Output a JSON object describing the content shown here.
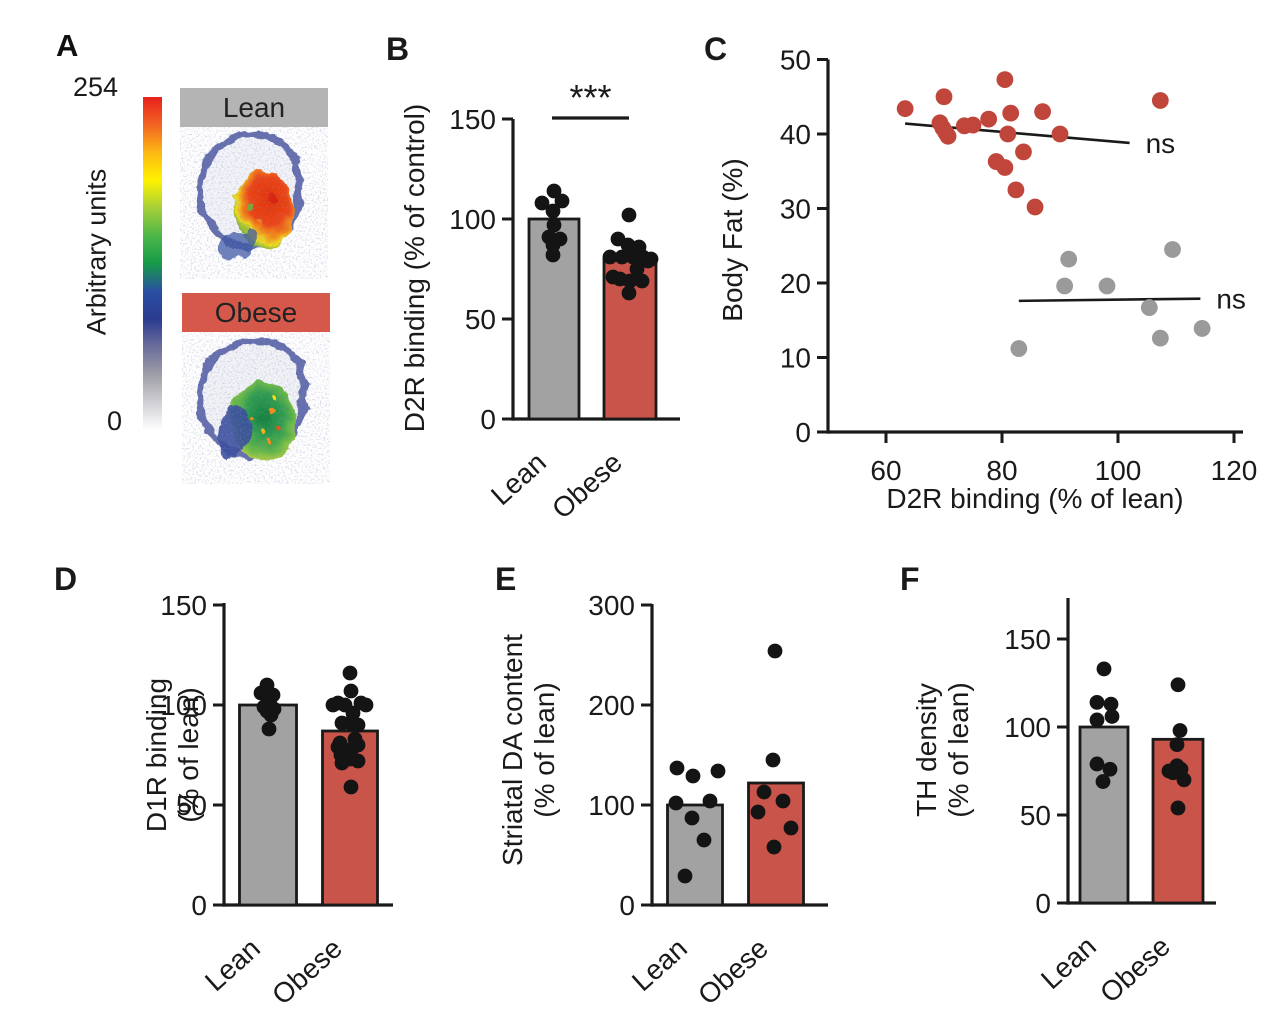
{
  "panel_a": {
    "label": "A",
    "colorbar": {
      "top_label": "254",
      "bottom_label": "0",
      "axis_label": "Arbitrary units",
      "gradient": [
        "#e8211d",
        "#f26322",
        "#fcb813",
        "#fff200",
        "#a6cf39",
        "#4cb749",
        "#169a49",
        "#2a4fa2",
        "#2b3b8f",
        "#6b6d9c",
        "#9e9ea6",
        "#cfcfd4",
        "#ffffff"
      ]
    },
    "images": [
      {
        "title": "Lean",
        "title_bg": "#b4b4b4"
      },
      {
        "title": "Obese",
        "title_bg": "#d5584a"
      }
    ]
  },
  "colors": {
    "bar_gray": "#a2a2a2",
    "bar_red": "#c9544a",
    "scatter_red": "#c0463c",
    "scatter_gray": "#9a9a9a",
    "dot_black": "#141414",
    "axis": "#1a1a1a"
  },
  "chart_data": [
    {
      "id": "B",
      "panel_label": "B",
      "type": "bar",
      "ylabel": [
        "D2R binding (% of control)"
      ],
      "categories": [
        "Lean",
        "Obese"
      ],
      "values": [
        100,
        80
      ],
      "bar_colors": [
        "#a2a2a2",
        "#c9544a"
      ],
      "yticks": [
        0,
        50,
        100,
        150
      ],
      "ylim": [
        0,
        150
      ],
      "significance": {
        "label": "***",
        "between": [
          "Lean",
          "Obese"
        ]
      },
      "points": {
        "Lean": [
          [
            0,
            114
          ],
          [
            -12,
            108
          ],
          [
            8,
            109
          ],
          [
            -1,
            104
          ],
          [
            0,
            97
          ],
          [
            -5,
            91
          ],
          [
            6,
            90
          ],
          [
            -1,
            87
          ],
          [
            -1,
            82
          ]
        ],
        "Obese": [
          [
            -1,
            102
          ],
          [
            -12,
            90
          ],
          [
            -2,
            87
          ],
          [
            9,
            86
          ],
          [
            -20,
            81
          ],
          [
            -8,
            81
          ],
          [
            3,
            81
          ],
          [
            13,
            81
          ],
          [
            21,
            80
          ],
          [
            18,
            79
          ],
          [
            7,
            75
          ],
          [
            -17,
            71
          ],
          [
            -10,
            70
          ],
          [
            0,
            69
          ],
          [
            12,
            69
          ],
          [
            -1,
            63
          ]
        ]
      }
    },
    {
      "id": "C",
      "panel_label": "C",
      "type": "scatter",
      "xlabel": "D2R binding (% of lean)",
      "ylabel": [
        "Body Fat (%)"
      ],
      "xticks": [
        60,
        80,
        100,
        120
      ],
      "yticks": [
        0,
        10,
        20,
        30,
        40,
        50
      ],
      "xlim": [
        50,
        122
      ],
      "ylim": [
        0,
        50
      ],
      "series": [
        {
          "name": "Obese",
          "color": "#c0463c",
          "points": [
            [
              63.3,
              43.4
            ],
            [
              70,
              45
            ],
            [
              80.5,
              47.3
            ],
            [
              69.3,
              41.5
            ],
            [
              69.8,
              40.8
            ],
            [
              70.3,
              40.2
            ],
            [
              70.7,
              39.7
            ],
            [
              73.5,
              41.1
            ],
            [
              75,
              41.2
            ],
            [
              77.7,
              42
            ],
            [
              81.5,
              42.8
            ],
            [
              87,
              43
            ],
            [
              81,
              40
            ],
            [
              90,
              40
            ],
            [
              107.3,
              44.5
            ],
            [
              83.7,
              37.6
            ],
            [
              79,
              36.3
            ],
            [
              80.5,
              35.5
            ],
            [
              82.4,
              32.5
            ],
            [
              85.7,
              30.2
            ]
          ]
        },
        {
          "name": "Lean",
          "color": "#9a9a9a",
          "points": [
            [
              91.5,
              23.2
            ],
            [
              109.4,
              24.5
            ],
            [
              90.8,
              19.6
            ],
            [
              98.1,
              19.6
            ],
            [
              105.4,
              16.7
            ],
            [
              114.5,
              13.9
            ],
            [
              107.3,
              12.6
            ],
            [
              82.9,
              11.2
            ]
          ]
        }
      ],
      "trend_lines": [
        {
          "series": "Obese",
          "x1": 63.3,
          "y1": 41.4,
          "x2": 102,
          "y2": 38.8,
          "label": "ns"
        },
        {
          "series": "Lean",
          "x1": 82.9,
          "y1": 17.6,
          "x2": 114.2,
          "y2": 17.9,
          "label": "ns"
        }
      ]
    },
    {
      "id": "D",
      "panel_label": "D",
      "type": "bar",
      "ylabel": [
        "D1R binding",
        "(% of lean)"
      ],
      "categories": [
        "Lean",
        "Obese"
      ],
      "values": [
        100,
        87
      ],
      "bar_colors": [
        "#a2a2a2",
        "#c9544a"
      ],
      "yticks": [
        0,
        50,
        100,
        150
      ],
      "ylim": [
        0,
        150
      ],
      "points": {
        "Lean": [
          [
            -1,
            110
          ],
          [
            -7,
            106
          ],
          [
            5,
            105
          ],
          [
            2,
            103
          ],
          [
            -4,
            99
          ],
          [
            6,
            98
          ],
          [
            -1,
            97
          ],
          [
            3,
            95
          ],
          [
            1,
            88
          ]
        ],
        "Obese": [
          [
            0,
            116
          ],
          [
            1,
            107
          ],
          [
            11,
            101
          ],
          [
            -12,
            101
          ],
          [
            -17,
            100
          ],
          [
            -5,
            100
          ],
          [
            16,
            100
          ],
          [
            3,
            96
          ],
          [
            -8,
            91
          ],
          [
            0,
            91
          ],
          [
            8,
            90
          ],
          [
            5,
            83
          ],
          [
            -10,
            81
          ],
          [
            8,
            80
          ],
          [
            -12,
            79
          ],
          [
            2,
            78
          ],
          [
            -9,
            75
          ],
          [
            0,
            73
          ],
          [
            8,
            72
          ],
          [
            -8,
            71
          ],
          [
            1,
            59
          ]
        ]
      }
    },
    {
      "id": "E",
      "panel_label": "E",
      "type": "bar",
      "ylabel": [
        "Striatal DA content",
        "(% of lean)"
      ],
      "categories": [
        "Lean",
        "Obese"
      ],
      "values": [
        100,
        122
      ],
      "bar_colors": [
        "#a2a2a2",
        "#c9544a"
      ],
      "yticks": [
        0,
        100,
        200,
        300
      ],
      "ylim": [
        0,
        300
      ],
      "points": {
        "Lean": [
          [
            -18,
            137
          ],
          [
            23,
            134
          ],
          [
            -2,
            129
          ],
          [
            15,
            104
          ],
          [
            -19,
            102
          ],
          [
            -3,
            87
          ],
          [
            9,
            65
          ],
          [
            -10,
            29
          ]
        ],
        "Obese": [
          [
            -1,
            254
          ],
          [
            -3,
            145
          ],
          [
            -12,
            113
          ],
          [
            7,
            104
          ],
          [
            -18,
            93
          ],
          [
            15,
            77
          ],
          [
            -2,
            58
          ]
        ]
      }
    },
    {
      "id": "F",
      "panel_label": "F",
      "type": "bar",
      "ylabel": [
        "TH density",
        "(% of lean)"
      ],
      "categories": [
        "Lean",
        "Obese"
      ],
      "values": [
        100,
        93
      ],
      "bar_colors": [
        "#a2a2a2",
        "#c9544a"
      ],
      "yticks": [
        0,
        50,
        100,
        150
      ],
      "ylim": [
        0,
        172
      ],
      "points": {
        "Lean": [
          [
            0,
            133
          ],
          [
            -7,
            114
          ],
          [
            7,
            113
          ],
          [
            8,
            106
          ],
          [
            -7,
            104
          ],
          [
            -7,
            79
          ],
          [
            6,
            76
          ],
          [
            -1,
            69
          ]
        ],
        "Obese": [
          [
            0,
            124
          ],
          [
            2,
            98
          ],
          [
            -1,
            90
          ],
          [
            -1,
            78
          ],
          [
            3,
            76
          ],
          [
            -9,
            75
          ],
          [
            -5,
            74
          ],
          [
            6,
            70
          ],
          [
            0,
            54
          ]
        ]
      }
    }
  ]
}
